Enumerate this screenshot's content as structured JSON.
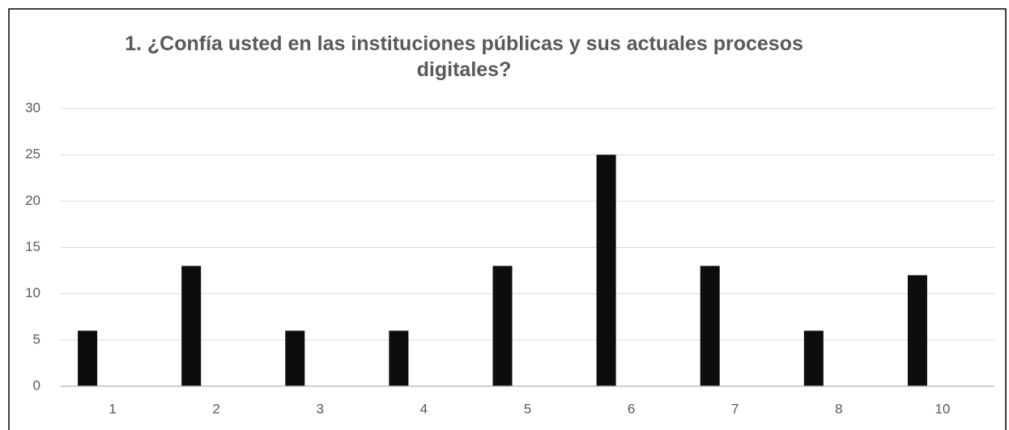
{
  "chart_data": {
    "type": "bar",
    "title": "1. ¿Confía usted en las instituciones públicas y sus actuales procesos digitales?",
    "categories": [
      "1",
      "2",
      "3",
      "4",
      "5",
      "6",
      "7",
      "8",
      "10"
    ],
    "values": [
      6,
      13,
      6,
      6,
      13,
      25,
      13,
      6,
      12
    ],
    "color": "#0d0d0d",
    "ylim": [
      0,
      30
    ],
    "yticks": [
      0,
      5,
      10,
      15,
      20,
      25,
      30
    ],
    "grid": true
  }
}
